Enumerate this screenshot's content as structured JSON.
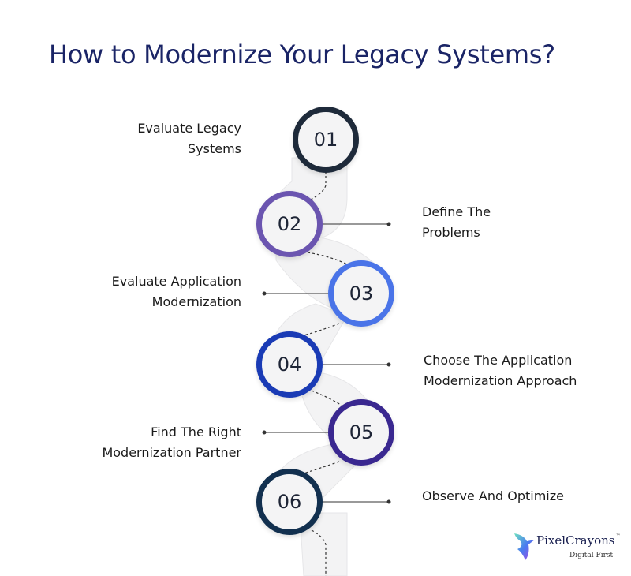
{
  "title": "How to Modernize Your Legacy Systems?",
  "steps": [
    {
      "number": "01",
      "label_line1": "Evaluate Legacy",
      "label_line2": "Systems",
      "color": "#1e2a3a"
    },
    {
      "number": "02",
      "label_line1": "Define The",
      "label_line2": "Problems",
      "color": "#6b55b0"
    },
    {
      "number": "03",
      "label_line1": "Evaluate Application",
      "label_line2": "Modernization",
      "color": "#4a74e8"
    },
    {
      "number": "04",
      "label_line1": "Choose The Application",
      "label_line2": "Modernization Approach",
      "color": "#1a3bb5"
    },
    {
      "number": "05",
      "label_line1": "Find The Right",
      "label_line2": "Modernization Partner",
      "color": "#3a2890"
    },
    {
      "number": "06",
      "label_line1": "Observe And Optimize",
      "label_line2": "",
      "color": "#12304f"
    }
  ],
  "logo": {
    "name": "PixelCrayons",
    "trademark": "™",
    "tagline": "Digital First"
  }
}
